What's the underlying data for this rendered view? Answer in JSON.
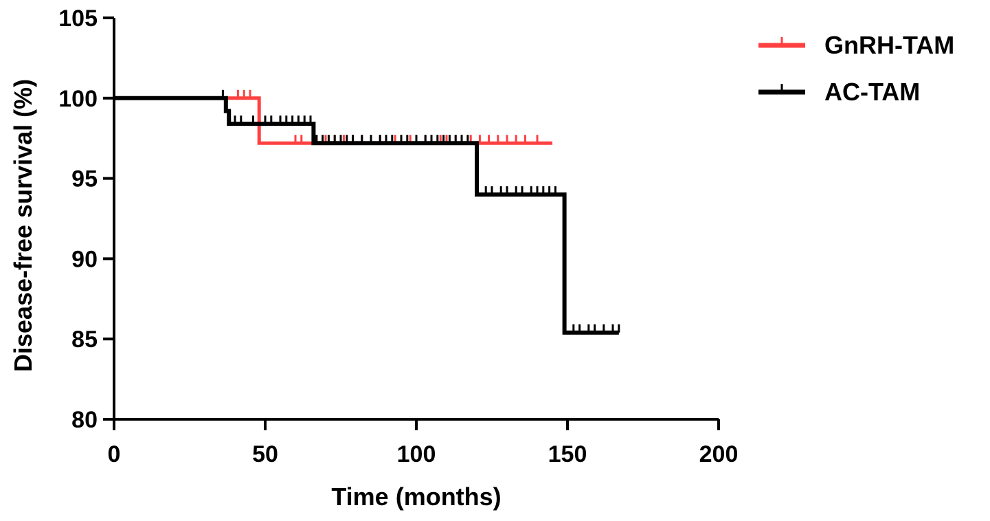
{
  "chart_data": {
    "type": "line",
    "subtype": "kaplan-meier step curve with censoring ticks",
    "title": "",
    "xlabel": "Time (months)",
    "ylabel": "Disease-free survival (%)",
    "xlim": [
      0,
      200
    ],
    "ylim": [
      80,
      105
    ],
    "xticks": [
      "0",
      "50",
      "100",
      "150",
      "200"
    ],
    "yticks": [
      "80",
      "85",
      "90",
      "95",
      "100",
      "105"
    ],
    "grid": false,
    "legend_position": "top-right",
    "series": [
      {
        "name": "GnRH-TAM",
        "color": "#ff4040",
        "steps": [
          [
            0,
            100
          ],
          [
            48,
            97.2
          ],
          [
            145,
            97.2
          ]
        ],
        "censor_times": [
          41,
          43,
          45,
          60,
          62,
          67,
          70,
          73,
          76,
          79,
          82,
          85,
          88,
          90,
          93,
          95,
          98,
          100,
          103,
          105,
          108,
          110,
          113,
          115,
          118,
          121,
          124,
          127,
          130,
          133,
          136,
          140
        ]
      },
      {
        "name": "AC-TAM",
        "color": "#000000",
        "steps": [
          [
            0,
            100
          ],
          [
            37,
            99.2
          ],
          [
            38,
            98.4
          ],
          [
            66,
            97.2
          ],
          [
            120,
            94
          ],
          [
            149,
            85.4
          ],
          [
            167,
            85.4
          ]
        ],
        "censor_times": [
          36,
          40,
          42,
          46,
          50,
          52,
          55,
          57,
          59,
          61,
          63,
          65,
          67,
          69,
          71,
          73,
          75,
          77,
          79,
          82,
          85,
          88,
          90,
          92,
          95,
          97,
          100,
          103,
          105,
          107,
          109,
          111,
          113,
          115,
          117,
          123,
          125,
          128,
          130,
          133,
          135,
          138,
          140,
          142,
          144,
          146,
          152,
          154,
          157,
          159,
          162,
          165,
          167
        ]
      }
    ]
  }
}
